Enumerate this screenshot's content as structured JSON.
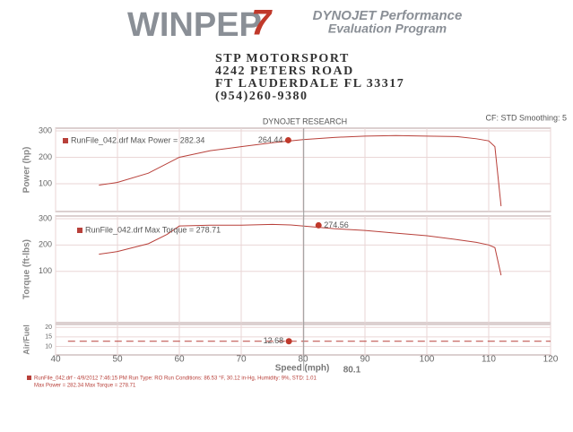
{
  "header": {
    "logo": "WINPEP",
    "logo_mark": "7",
    "program_line1": "DYNOJET Performance",
    "program_line2": "Evaluation Program",
    "address": [
      "STP MOTORSPORT",
      "4242 PETERS ROAD",
      "FT LAUDERDALE FL 33317",
      "(954)260-9380"
    ],
    "chart_heading": "DYNOJET RESEARCH",
    "settings": "CF: STD  Smoothing: 5",
    "x_label": "Speed (mph)"
  },
  "footer": {
    "line1": "RunFile_042.drf - 4/9/2012 7:46:15 PM  Run Type: RO  Run Conditions: 86.53 °F, 30.12 in-Hg, Humidity: 9%, STD: 1.01",
    "line2": "Max Power = 282.34  Max Torque = 278.71"
  },
  "chart_data": [
    {
      "type": "line",
      "y_label": "Power (hp)",
      "xlim": [
        40,
        120
      ],
      "xticks": [
        40,
        50,
        60,
        70,
        80,
        90,
        100,
        110,
        120
      ],
      "ylim": [
        -5,
        310
      ],
      "yticks": [
        100,
        200,
        300
      ],
      "grid": true,
      "x": [
        47,
        50,
        55,
        60,
        65,
        70,
        75,
        80,
        85,
        90,
        95,
        100,
        105,
        108,
        110,
        111,
        112
      ],
      "series": [
        {
          "name": "RunFile_042.drf Max Power = 282.34",
          "color": "#b8403a",
          "values": [
            95,
            105,
            140,
            200,
            225,
            240,
            255,
            267,
            275,
            280,
            282,
            280,
            278,
            270,
            262,
            240,
            15
          ]
        }
      ],
      "marker": {
        "x": 77.6,
        "y": 264.44
      }
    },
    {
      "type": "line",
      "y_label": "Torque (ft-lbs)",
      "xlim": [
        40,
        120
      ],
      "xticks": [
        40,
        50,
        60,
        70,
        80,
        90,
        100,
        110,
        120
      ],
      "ylim": [
        -95,
        310
      ],
      "yticks": [
        100,
        200,
        300
      ],
      "grid": true,
      "x": [
        47,
        50,
        55,
        58,
        60,
        65,
        70,
        75,
        78,
        85,
        90,
        95,
        100,
        105,
        108,
        110,
        111,
        112
      ],
      "series": [
        {
          "name": "RunFile_042.drf Max Torque = 278.71",
          "color": "#b8403a",
          "values": [
            165,
            175,
            205,
            240,
            272,
            275,
            275,
            278,
            276,
            262,
            255,
            245,
            235,
            220,
            210,
            200,
            190,
            85
          ]
        }
      ],
      "marker": {
        "x": 82.5,
        "y": 274.56
      }
    },
    {
      "type": "line",
      "y_label": "Air/Fuel",
      "xlim": [
        40,
        120
      ],
      "xticks": [
        40,
        50,
        60,
        70,
        80,
        90,
        100,
        110,
        120
      ],
      "ylim": [
        5.5,
        21.5
      ],
      "yticks": [
        10,
        15,
        20
      ],
      "grid": true,
      "x": [
        42,
        120
      ],
      "series": [
        {
          "color": "#b8403a",
          "values": [
            12.7,
            12.7
          ]
        }
      ],
      "marker": {
        "x": 77.7,
        "y": 12.68
      },
      "cursor": 80.1
    }
  ]
}
